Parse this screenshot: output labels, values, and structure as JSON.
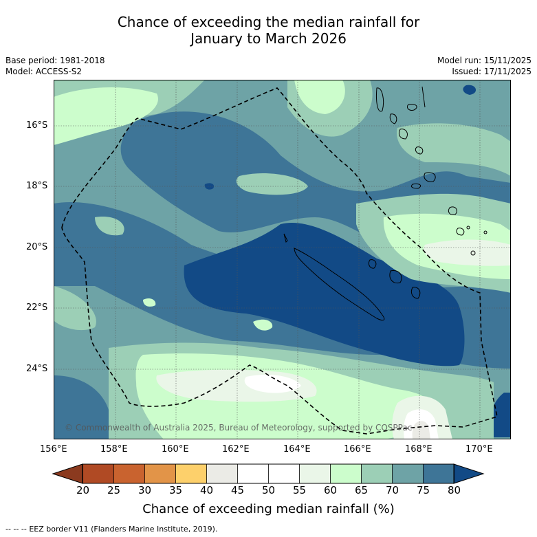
{
  "title": {
    "line1": "Chance of exceeding the median rainfall for",
    "line2": "January to March 2026"
  },
  "meta": {
    "base_period": "Base period: 1981-2018",
    "model": "Model: ACCESS-S2",
    "model_run": "Model run: 15/11/2025",
    "issued": "Issued: 17/11/2025"
  },
  "map": {
    "lat_ticks": [
      "16°S",
      "18°S",
      "20°S",
      "22°S",
      "24°S"
    ],
    "lon_ticks": [
      "156°E",
      "158°E",
      "160°E",
      "162°E",
      "164°E",
      "166°E",
      "168°E",
      "170°E"
    ],
    "copyright": "© Commonwealth of Australia 2025, Bureau of Meteorology, supported by COSPPac",
    "region": "New Caledonia",
    "overlay": "EEZ border (dashed)"
  },
  "colorbar": {
    "title": "Chance of exceeding median rainfall (%)",
    "ticks": [
      "20",
      "25",
      "30",
      "35",
      "40",
      "45",
      "50",
      "55",
      "60",
      "65",
      "70",
      "75",
      "80"
    ],
    "colors": {
      "below20": "#8b3a1f",
      "c20_25": "#b04a24",
      "c25_30": "#c9632f",
      "c30_35": "#e29448",
      "c35_40": "#fdd06b",
      "c40_45": "#ebebe6",
      "c45_50": "#ffffff",
      "c50_55": "#ffffff",
      "c55_60": "#eaf6e8",
      "c60_65": "#ccfdcc",
      "c65_70": "#9ccfb6",
      "c70_75": "#6ea3a6",
      "c75_80": "#3e7597",
      "above80": "#124a86"
    }
  },
  "footer": {
    "legend_symbol": "-- -- --",
    "legend_text": "EEZ border V11 (Flanders Marine Institute, 2019)."
  }
}
